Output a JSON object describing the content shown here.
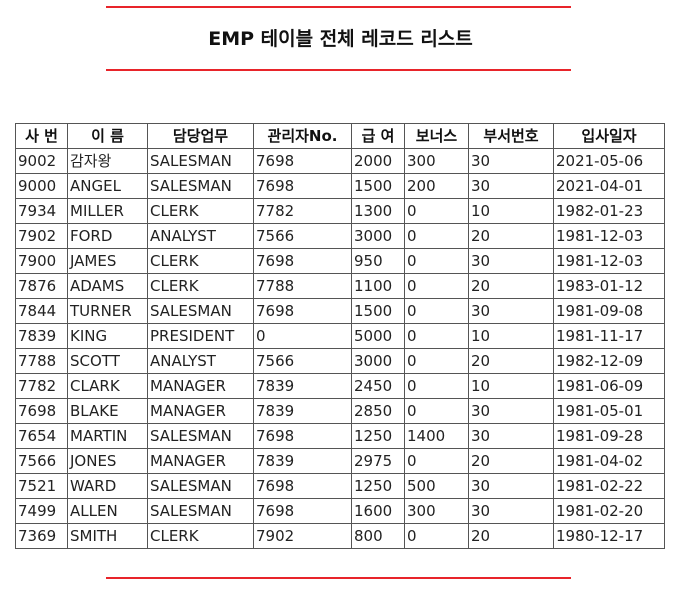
{
  "title": "EMP 테이블 전체 레코드 리스트",
  "colors": {
    "rule": "#e8242a",
    "border": "#555555"
  },
  "table": {
    "headers": [
      "사 번",
      "이 름",
      "담당업무",
      "관리자No.",
      "급 여",
      "보너스",
      "부서번호",
      "입사일자"
    ],
    "rows": [
      [
        "9002",
        "감자왕",
        "SALESMAN",
        "7698",
        "2000",
        "300",
        "30",
        "2021-05-06"
      ],
      [
        "9000",
        "ANGEL",
        "SALESMAN",
        "7698",
        "1500",
        "200",
        "30",
        "2021-04-01"
      ],
      [
        "7934",
        "MILLER",
        "CLERK",
        "7782",
        "1300",
        "0",
        "10",
        "1982-01-23"
      ],
      [
        "7902",
        "FORD",
        "ANALYST",
        "7566",
        "3000",
        "0",
        "20",
        "1981-12-03"
      ],
      [
        "7900",
        "JAMES",
        "CLERK",
        "7698",
        "950",
        "0",
        "30",
        "1981-12-03"
      ],
      [
        "7876",
        "ADAMS",
        "CLERK",
        "7788",
        "1100",
        "0",
        "20",
        "1983-01-12"
      ],
      [
        "7844",
        "TURNER",
        "SALESMAN",
        "7698",
        "1500",
        "0",
        "30",
        "1981-09-08"
      ],
      [
        "7839",
        "KING",
        "PRESIDENT",
        "0",
        "5000",
        "0",
        "10",
        "1981-11-17"
      ],
      [
        "7788",
        "SCOTT",
        "ANALYST",
        "7566",
        "3000",
        "0",
        "20",
        "1982-12-09"
      ],
      [
        "7782",
        "CLARK",
        "MANAGER",
        "7839",
        "2450",
        "0",
        "10",
        "1981-06-09"
      ],
      [
        "7698",
        "BLAKE",
        "MANAGER",
        "7839",
        "2850",
        "0",
        "30",
        "1981-05-01"
      ],
      [
        "7654",
        "MARTIN",
        "SALESMAN",
        "7698",
        "1250",
        "1400",
        "30",
        "1981-09-28"
      ],
      [
        "7566",
        "JONES",
        "MANAGER",
        "7839",
        "2975",
        "0",
        "20",
        "1981-04-02"
      ],
      [
        "7521",
        "WARD",
        "SALESMAN",
        "7698",
        "1250",
        "500",
        "30",
        "1981-02-22"
      ],
      [
        "7499",
        "ALLEN",
        "SALESMAN",
        "7698",
        "1600",
        "300",
        "30",
        "1981-02-20"
      ],
      [
        "7369",
        "SMITH",
        "CLERK",
        "7902",
        "800",
        "0",
        "20",
        "1980-12-17"
      ]
    ]
  }
}
